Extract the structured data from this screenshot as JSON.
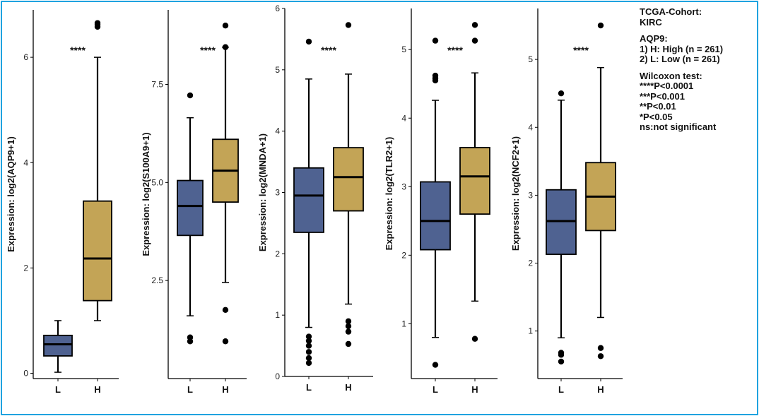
{
  "colors": {
    "low": "#4f6291",
    "high": "#c3a456",
    "frame": "#1fa3e0",
    "ink": "#000000"
  },
  "legend": {
    "cohort_title": "TCGA-Cohort:",
    "cohort": "KIRC",
    "gene_title": "AQP9:",
    "group1": "1) H: High (n = 261)",
    "group2": "2) L: Low (n = 261)",
    "test_title": "Wilcoxon test:",
    "sig1": "****P<0.0001",
    "sig2": "***P<0.001",
    "sig3": "**P<0.01",
    "sig4": "*P<0.05",
    "sig5": "ns:not significant"
  },
  "chart_data": [
    {
      "type": "boxplot",
      "ylabel": "Expression: log2(AQP9+1)",
      "categories": [
        "L",
        "H"
      ],
      "ylim": [
        -0.1,
        6.9
      ],
      "yticks": [
        0,
        2,
        4,
        6
      ],
      "significance": "****",
      "boxes": [
        {
          "group": "L",
          "min": 0.02,
          "q1": 0.33,
          "median": 0.55,
          "q3": 0.72,
          "max": 1.0,
          "outliers": []
        },
        {
          "group": "H",
          "min": 1.0,
          "q1": 1.38,
          "median": 2.18,
          "q3": 3.27,
          "max": 6.0,
          "outliers": [
            6.58,
            6.62,
            6.65
          ]
        }
      ]
    },
    {
      "type": "boxplot",
      "ylabel": "Expression: log2(S100A9+1)",
      "categories": [
        "L",
        "H"
      ],
      "ylim": [
        0,
        9.4
      ],
      "yticks": [
        2.5,
        5.0,
        7.5
      ],
      "ytick_labels": [
        "2.5",
        "5.0",
        "7.5"
      ],
      "significance": "****",
      "boxes": [
        {
          "group": "L",
          "min": 1.6,
          "q1": 3.65,
          "median": 4.4,
          "q3": 5.05,
          "max": 6.65,
          "outliers": [
            7.22,
            1.05,
            0.95
          ]
        },
        {
          "group": "H",
          "min": 2.45,
          "q1": 4.5,
          "median": 5.3,
          "q3": 6.1,
          "max": 8.45,
          "outliers": [
            8.45,
            9.0,
            1.75,
            0.95
          ]
        }
      ]
    },
    {
      "type": "boxplot",
      "ylabel": "Expression: log2(MNDA+1)",
      "categories": [
        "L",
        "H"
      ],
      "ylim": [
        0,
        6
      ],
      "yticks": [
        0,
        1,
        2,
        3,
        4,
        5,
        6
      ],
      "significance": "****",
      "boxes": [
        {
          "group": "L",
          "min": 0.8,
          "q1": 2.35,
          "median": 2.95,
          "q3": 3.4,
          "max": 4.85,
          "outliers": [
            5.46,
            0.65,
            0.58,
            0.5,
            0.4,
            0.3,
            0.22
          ]
        },
        {
          "group": "H",
          "min": 1.18,
          "q1": 2.7,
          "median": 3.25,
          "q3": 3.73,
          "max": 4.93,
          "outliers": [
            5.73,
            0.9,
            0.82,
            0.73,
            0.53
          ]
        }
      ]
    },
    {
      "type": "boxplot",
      "ylabel": "Expression: log2(TLR2+1)",
      "categories": [
        "L",
        "H"
      ],
      "ylim": [
        0.2,
        5.6
      ],
      "yticks": [
        1,
        2,
        3,
        4,
        5
      ],
      "significance": "****",
      "boxes": [
        {
          "group": "L",
          "min": 0.8,
          "q1": 2.08,
          "median": 2.5,
          "q3": 3.07,
          "max": 4.26,
          "outliers": [
            5.13,
            4.62,
            4.58,
            4.55,
            0.4
          ]
        },
        {
          "group": "H",
          "min": 1.33,
          "q1": 2.6,
          "median": 3.15,
          "q3": 3.57,
          "max": 4.66,
          "outliers": [
            5.36,
            5.13,
            0.78
          ]
        }
      ]
    },
    {
      "type": "boxplot",
      "ylabel": "Expression: log2(NCF2+1)",
      "categories": [
        "L",
        "H"
      ],
      "ylim": [
        0.3,
        5.75
      ],
      "yticks": [
        1,
        2,
        3,
        4,
        5
      ],
      "significance": "****",
      "boxes": [
        {
          "group": "L",
          "min": 0.9,
          "q1": 2.13,
          "median": 2.62,
          "q3": 3.08,
          "max": 4.4,
          "outliers": [
            4.5,
            0.68,
            0.65,
            0.55
          ]
        },
        {
          "group": "H",
          "min": 1.2,
          "q1": 2.48,
          "median": 2.98,
          "q3": 3.48,
          "max": 4.88,
          "outliers": [
            5.5,
            0.75,
            0.63
          ]
        }
      ]
    }
  ]
}
